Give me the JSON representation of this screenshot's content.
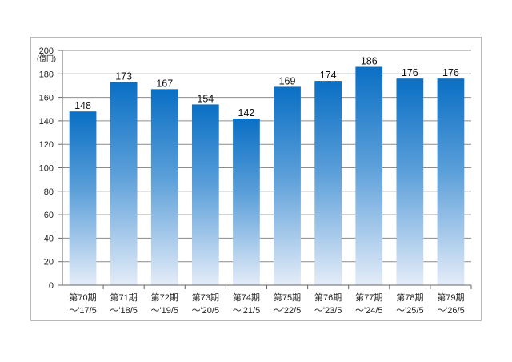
{
  "chart_data": {
    "type": "bar",
    "unit_label": "(億円)",
    "ylim": [
      0,
      200
    ],
    "yticks": [
      0,
      20,
      40,
      60,
      80,
      100,
      120,
      140,
      160,
      180,
      200
    ],
    "grid": true,
    "categories": [
      [
        "第70期",
        "～'17/5"
      ],
      [
        "第71期",
        "～'18/5"
      ],
      [
        "第72期",
        "～'19/5"
      ],
      [
        "第73期",
        "～'20/5"
      ],
      [
        "第74期",
        "～'21/5"
      ],
      [
        "第75期",
        "～'22/5"
      ],
      [
        "第76期",
        "～'23/5"
      ],
      [
        "第77期",
        "～'24/5"
      ],
      [
        "第78期",
        "～'25/5"
      ],
      [
        "第79期",
        "～'26/5"
      ]
    ],
    "values": [
      148,
      173,
      167,
      154,
      142,
      169,
      174,
      186,
      176,
      176
    ],
    "bar_color_top": "#0a6fc4",
    "bar_color_bottom": "#e4ecf8"
  }
}
